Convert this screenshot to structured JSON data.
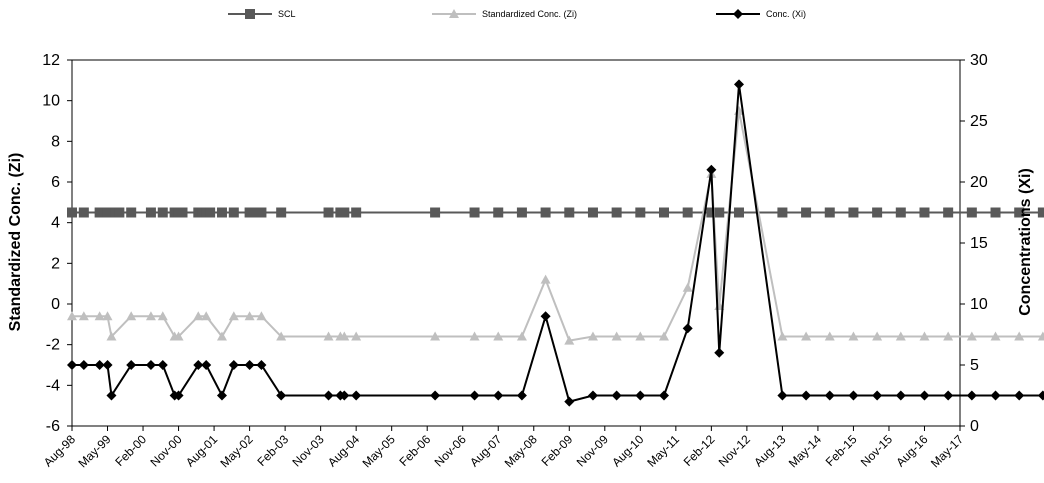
{
  "chart_data": {
    "type": "line",
    "x_categories": [
      "Aug-98",
      "May-99",
      "Feb-00",
      "Nov-00",
      "Aug-01",
      "May-02",
      "Feb-03",
      "Nov-03",
      "Aug-04",
      "May-05",
      "Feb-06",
      "Nov-06",
      "Aug-07",
      "May-08",
      "Feb-09",
      "Nov-09",
      "Aug-10",
      "May-11",
      "Feb-12",
      "Nov-12",
      "Aug-13",
      "May-14",
      "Feb-15",
      "Nov-15",
      "Aug-16",
      "May-17"
    ],
    "y_left": {
      "label": "Standardized Conc. (Zi)",
      "min": -6,
      "max": 12,
      "step": 2
    },
    "y_right": {
      "label": "Concentrations (Xi)",
      "min": 0,
      "max": 30,
      "step": 5
    },
    "series": [
      {
        "name": "SCL",
        "axis": "left",
        "color": "#595959",
        "marker": "square",
        "points": [
          [
            "Aug-98",
            4.5
          ],
          [
            "Nov-98",
            4.5
          ],
          [
            "Mar-99",
            4.5
          ],
          [
            "May-99",
            4.5
          ],
          [
            "Jun-99",
            4.5
          ],
          [
            "Jul-99",
            4.5
          ],
          [
            "Aug-99",
            4.5
          ],
          [
            "Nov-99",
            4.5
          ],
          [
            "Apr-00",
            4.5
          ],
          [
            "Jul-00",
            4.5
          ],
          [
            "Oct-00",
            4.5
          ],
          [
            "Nov-00",
            4.5
          ],
          [
            "Dec-00",
            4.5
          ],
          [
            "Apr-01",
            4.5
          ],
          [
            "May-01",
            4.5
          ],
          [
            "Jun-01",
            4.5
          ],
          [
            "Jul-01",
            4.5
          ],
          [
            "Oct-01",
            4.5
          ],
          [
            "Jan-02",
            4.5
          ],
          [
            "May-02",
            4.5
          ],
          [
            "Jun-02",
            4.5
          ],
          [
            "Aug-02",
            4.5
          ],
          [
            "Jan-03",
            4.5
          ],
          [
            "Jan-04",
            4.5
          ],
          [
            "Apr-04",
            4.5
          ],
          [
            "May-04",
            4.5
          ],
          [
            "Aug-04",
            4.5
          ],
          [
            "Apr-06",
            4.5
          ],
          [
            "Feb-07",
            4.5
          ],
          [
            "Aug-07",
            4.5
          ],
          [
            "Feb-08",
            4.5
          ],
          [
            "Aug-08",
            4.5
          ],
          [
            "Feb-09",
            4.5
          ],
          [
            "Aug-09",
            4.5
          ],
          [
            "Feb-10",
            4.5
          ],
          [
            "Aug-10",
            4.5
          ],
          [
            "Feb-11",
            4.5
          ],
          [
            "Aug-11",
            4.5
          ],
          [
            "Feb-12",
            4.5
          ],
          [
            "Apr-12",
            4.5
          ],
          [
            "Sep-12",
            4.5
          ],
          [
            "Aug-13",
            4.5
          ],
          [
            "Feb-14",
            4.5
          ],
          [
            "Aug-14",
            4.5
          ],
          [
            "Feb-15",
            4.5
          ],
          [
            "Aug-15",
            4.5
          ],
          [
            "Feb-16",
            4.5
          ],
          [
            "Aug-16",
            4.5
          ],
          [
            "Feb-17",
            4.5
          ],
          [
            "Aug-17",
            4.5
          ],
          [
            "Feb-18",
            4.5
          ],
          [
            "Aug-18",
            4.5
          ],
          [
            "Feb-19",
            4.5
          ]
        ]
      },
      {
        "name": "Standardized Conc. (Zi)",
        "axis": "left",
        "color": "#bfbfbf",
        "marker": "triangle",
        "points": [
          [
            "Aug-98",
            -0.6
          ],
          [
            "Nov-98",
            -0.6
          ],
          [
            "Mar-99",
            -0.6
          ],
          [
            "May-99",
            -0.6
          ],
          [
            "Jun-99",
            -1.6
          ],
          [
            "Nov-99",
            -0.6
          ],
          [
            "Apr-00",
            -0.6
          ],
          [
            "Jul-00",
            -0.6
          ],
          [
            "Oct-00",
            -1.6
          ],
          [
            "Nov-00",
            -1.6
          ],
          [
            "Apr-01",
            -0.6
          ],
          [
            "Jun-01",
            -0.6
          ],
          [
            "Oct-01",
            -1.6
          ],
          [
            "Jan-02",
            -0.6
          ],
          [
            "May-02",
            -0.6
          ],
          [
            "Aug-02",
            -0.6
          ],
          [
            "Jan-03",
            -1.6
          ],
          [
            "Jan-04",
            -1.6
          ],
          [
            "Apr-04",
            -1.6
          ],
          [
            "May-04",
            -1.6
          ],
          [
            "Aug-04",
            -1.6
          ],
          [
            "Apr-06",
            -1.6
          ],
          [
            "Feb-07",
            -1.6
          ],
          [
            "Aug-07",
            -1.6
          ],
          [
            "Feb-08",
            -1.6
          ],
          [
            "Aug-08",
            1.2
          ],
          [
            "Feb-09",
            -1.8
          ],
          [
            "Aug-09",
            -1.6
          ],
          [
            "Feb-10",
            -1.6
          ],
          [
            "Aug-10",
            -1.6
          ],
          [
            "Feb-11",
            -1.6
          ],
          [
            "Aug-11",
            0.8
          ],
          [
            "Feb-12",
            6.4
          ],
          [
            "Apr-12",
            -0.1
          ],
          [
            "Sep-12",
            9.5
          ],
          [
            "Aug-13",
            -1.6
          ],
          [
            "Feb-14",
            -1.6
          ],
          [
            "Aug-14",
            -1.6
          ],
          [
            "Feb-15",
            -1.6
          ],
          [
            "Aug-15",
            -1.6
          ],
          [
            "Feb-16",
            -1.6
          ],
          [
            "Aug-16",
            -1.6
          ],
          [
            "Feb-17",
            -1.6
          ],
          [
            "Aug-17",
            -1.6
          ],
          [
            "Feb-18",
            -1.6
          ],
          [
            "Aug-18",
            -1.6
          ],
          [
            "Feb-19",
            -1.6
          ]
        ]
      },
      {
        "name": "Conc. (Xi)",
        "axis": "right",
        "color": "#000000",
        "marker": "diamond",
        "points": [
          [
            "Aug-98",
            5
          ],
          [
            "Nov-98",
            5
          ],
          [
            "Mar-99",
            5
          ],
          [
            "May-99",
            5
          ],
          [
            "Jun-99",
            2.5
          ],
          [
            "Nov-99",
            5
          ],
          [
            "Apr-00",
            5
          ],
          [
            "Jul-00",
            5
          ],
          [
            "Oct-00",
            2.5
          ],
          [
            "Nov-00",
            2.5
          ],
          [
            "Apr-01",
            5
          ],
          [
            "Jun-01",
            5
          ],
          [
            "Oct-01",
            2.5
          ],
          [
            "Jan-02",
            5
          ],
          [
            "May-02",
            5
          ],
          [
            "Aug-02",
            5
          ],
          [
            "Jan-03",
            2.5
          ],
          [
            "Jan-04",
            2.5
          ],
          [
            "Apr-04",
            2.5
          ],
          [
            "May-04",
            2.5
          ],
          [
            "Aug-04",
            2.5
          ],
          [
            "Apr-06",
            2.5
          ],
          [
            "Feb-07",
            2.5
          ],
          [
            "Aug-07",
            2.5
          ],
          [
            "Feb-08",
            2.5
          ],
          [
            "Aug-08",
            9
          ],
          [
            "Feb-09",
            2
          ],
          [
            "Aug-09",
            2.5
          ],
          [
            "Feb-10",
            2.5
          ],
          [
            "Aug-10",
            2.5
          ],
          [
            "Feb-11",
            2.5
          ],
          [
            "Aug-11",
            8
          ],
          [
            "Feb-12",
            21
          ],
          [
            "Apr-12",
            6
          ],
          [
            "Sep-12",
            28
          ],
          [
            "Aug-13",
            2.5
          ],
          [
            "Feb-14",
            2.5
          ],
          [
            "Aug-14",
            2.5
          ],
          [
            "Feb-15",
            2.5
          ],
          [
            "Aug-15",
            2.5
          ],
          [
            "Feb-16",
            2.5
          ],
          [
            "Aug-16",
            2.5
          ],
          [
            "Feb-17",
            2.5
          ],
          [
            "Aug-17",
            2.5
          ],
          [
            "Feb-18",
            2.5
          ],
          [
            "Aug-18",
            2.5
          ],
          [
            "Feb-19",
            2.5
          ]
        ]
      }
    ],
    "legend": {
      "position": "top",
      "entries": [
        "SCL",
        "Standardized Conc. (Zi)",
        "Conc. (Xi)"
      ]
    },
    "grid": false
  }
}
